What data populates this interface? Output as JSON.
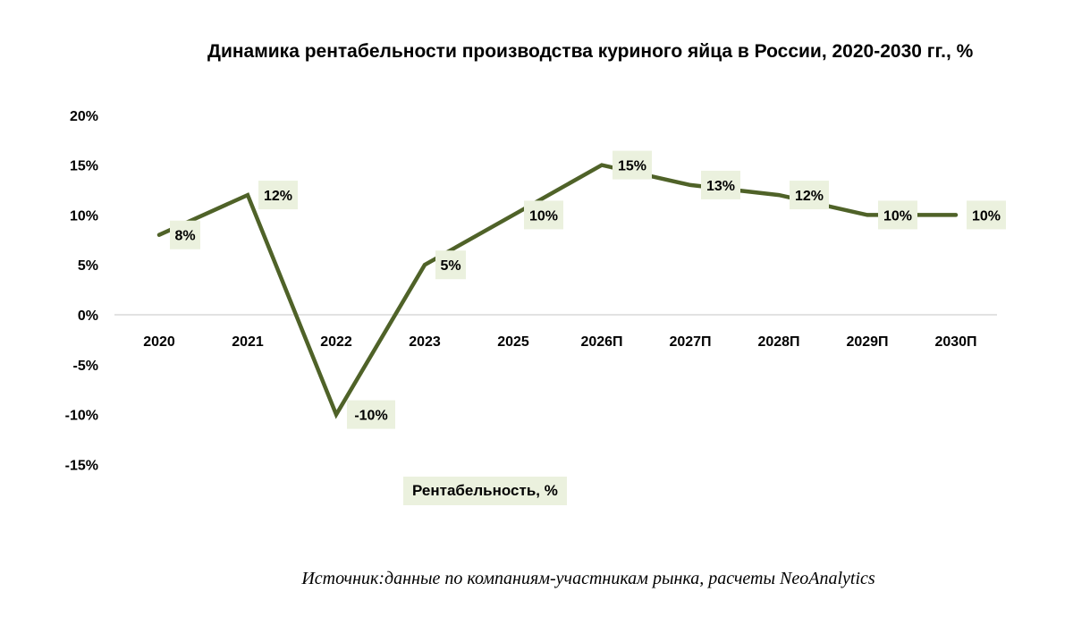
{
  "chart_data": {
    "type": "line",
    "title": "Динамика рентабельности производства куриного яйца в России, 2020-2030 гг., %",
    "categories": [
      "2020",
      "2021",
      "2022",
      "2023",
      "2025",
      "2026П",
      "2027П",
      "2028П",
      "2029П",
      "2030П"
    ],
    "series": [
      {
        "name": "Рентабельность, %",
        "values": [
          8,
          12,
          -10,
          5,
          10,
          15,
          13,
          12,
          10,
          10
        ],
        "labels": [
          "8%",
          "12%",
          "-10%",
          "5%",
          "10%",
          "15%",
          "13%",
          "12%",
          "10%",
          "10%"
        ]
      }
    ],
    "ylim": [
      -15,
      20
    ],
    "yticks": [
      "20%",
      "15%",
      "10%",
      "5%",
      "0%",
      "-5%",
      "-10%",
      "-15%"
    ],
    "ytick_values": [
      20,
      15,
      10,
      5,
      0,
      -5,
      -10,
      -15
    ],
    "grid": false,
    "legend": "bottom",
    "colors": {
      "line": "#4f6228",
      "label_bg": "#ebf1de",
      "axis": "#d9d9d9"
    }
  },
  "source": "Источник:данные по компаниям-участникам рынка, расчеты NeoAnalytics"
}
